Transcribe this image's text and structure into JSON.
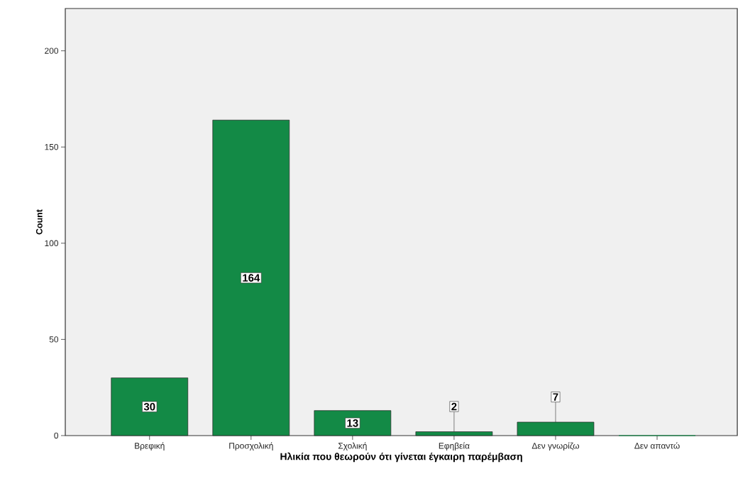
{
  "chart_data": {
    "type": "bar",
    "xlabel": "Ηλικία που θεωρούν ότι γίνεται έγκαιρη παρέμβαση",
    "ylabel": "Count",
    "categories": [
      "Βρεφική",
      "Προσχολική",
      "Σχολική",
      "Εφηβεία",
      "Δεν γνωρίζω",
      "Δεν απαντώ"
    ],
    "values": [
      30,
      164,
      13,
      2,
      7,
      0
    ],
    "value_labels": [
      "30",
      "164",
      "13",
      "2",
      "7",
      null
    ],
    "color": "#138a46",
    "ylim": [
      0,
      222
    ],
    "yticks": [
      0,
      50,
      100,
      150,
      200
    ],
    "grid": false
  }
}
